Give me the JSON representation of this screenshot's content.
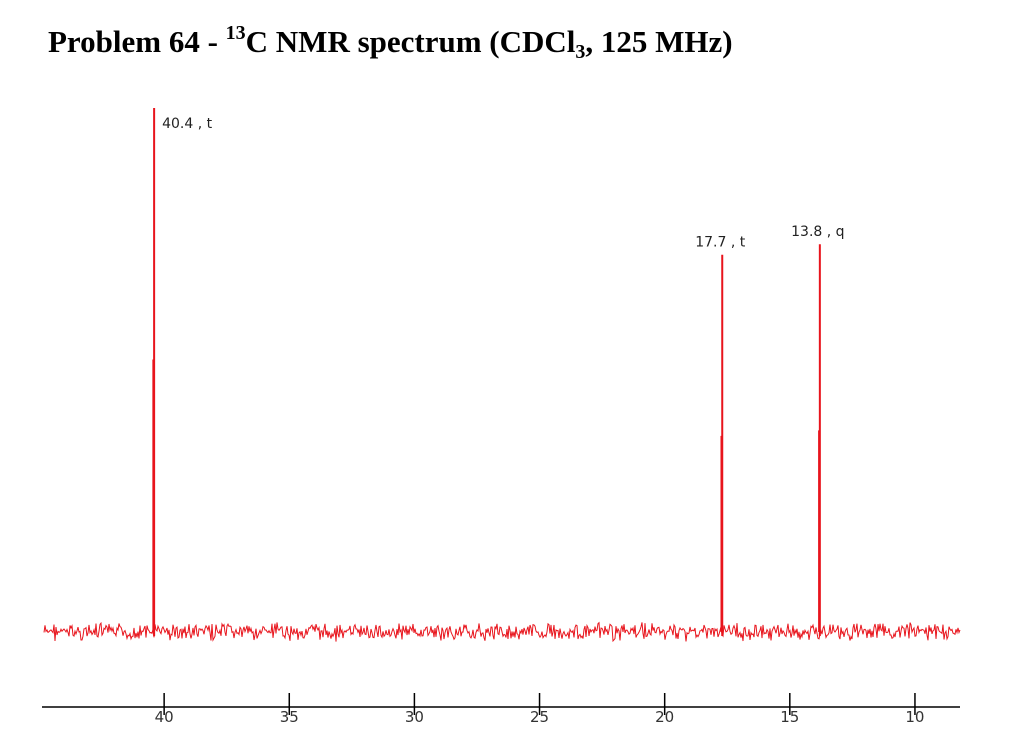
{
  "title": {
    "prefix": "Problem 64 - ",
    "superscript": "13",
    "main": "C NMR spectrum (CDCl",
    "subscript": "3",
    "suffix": ", 125 MHz)"
  },
  "colors": {
    "spectrum": "#e8141c",
    "axis": "#000000",
    "text": "#000000"
  },
  "chart_data": {
    "type": "line",
    "title": "Problem 64 - 13C NMR spectrum (CDCl3, 125 MHz)",
    "xlabel": "",
    "ylabel": "",
    "xlim": [
      44.8,
      8.2
    ],
    "x_reversed": true,
    "ylim": [
      0,
      1
    ],
    "grid": false,
    "x_ticks": [
      40,
      35,
      30,
      25,
      20,
      15,
      10
    ],
    "peaks": [
      {
        "ppm": 40.4,
        "intensity": 1.0,
        "label": "40.4 , t"
      },
      {
        "ppm": 17.7,
        "intensity": 0.72,
        "label": "17.7 , t"
      },
      {
        "ppm": 13.8,
        "intensity": 0.74,
        "label": "13.8 , q"
      }
    ],
    "baseline_noise": true
  }
}
